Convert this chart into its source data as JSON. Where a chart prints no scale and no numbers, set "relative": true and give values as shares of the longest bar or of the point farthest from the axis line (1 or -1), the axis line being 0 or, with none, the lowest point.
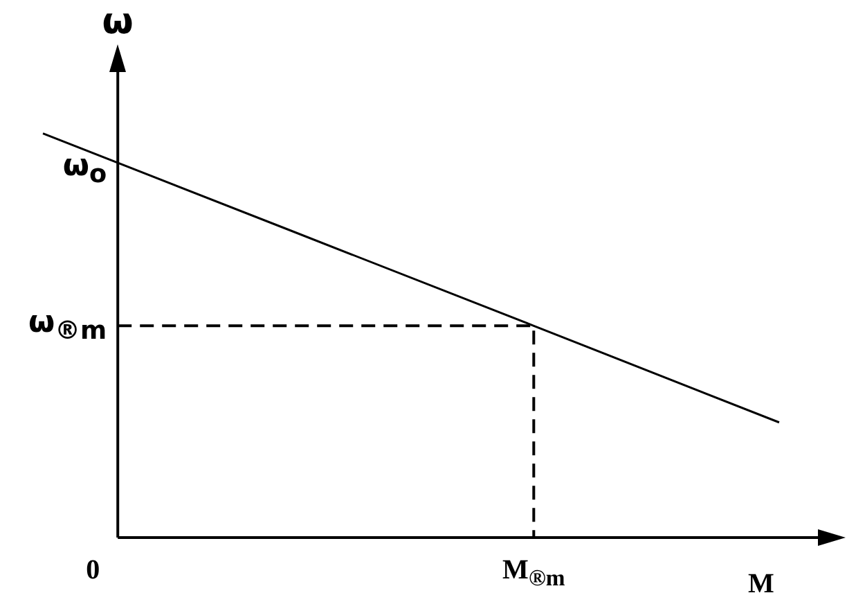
{
  "chart_data": {
    "type": "line",
    "relative": true,
    "xlabel": "M",
    "ylabel": "ω",
    "marker": "none",
    "categories": [
      null,
      null,
      null,
      null
    ],
    "series": [
      {
        "color": "#000000",
        "values": [
          1,
          0.762,
          0.524,
          0.285
        ]
      }
    ],
    "annotations": [
      "0",
      "ω$_{o}$",
      "M$_{®m}$"
    ],
    "ref_lines": [
      {
        "axis": "y",
        "value": 0.524,
        "label": "ω$_{®m}$",
        "line_style": "dashed",
        "color": "#000000"
      }
    ]
  }
}
